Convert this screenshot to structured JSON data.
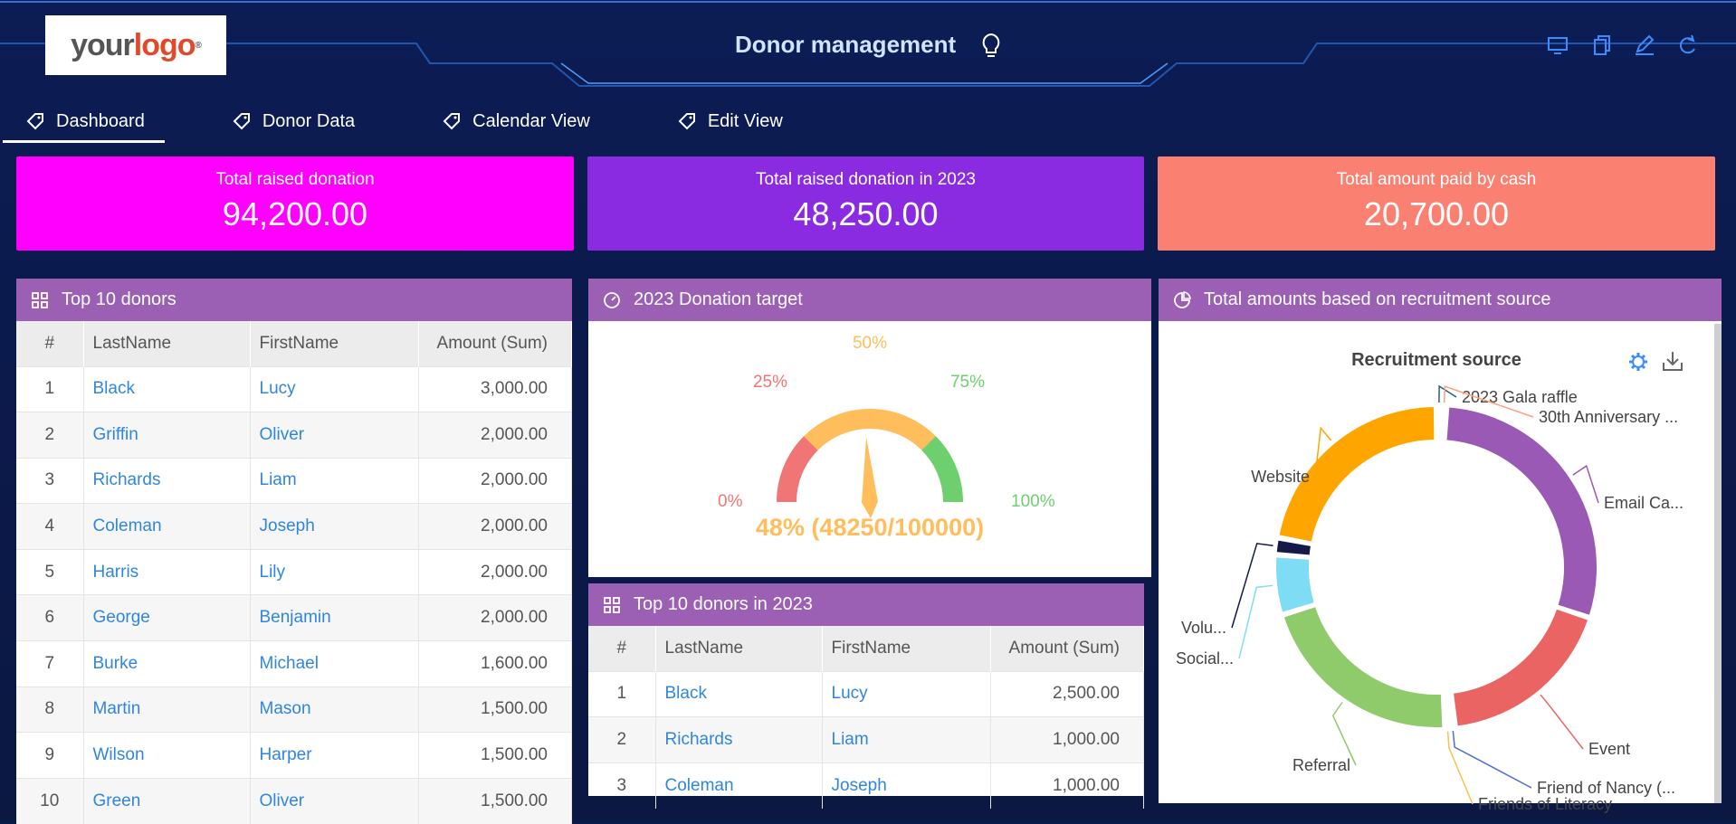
{
  "app": {
    "title": "Donor management",
    "logo_text": {
      "your": "your",
      "logo": "logo",
      "mark": "®"
    }
  },
  "header_icons": [
    "monitor-icon",
    "copy-icon",
    "edit-icon",
    "refresh-icon"
  ],
  "tabs": [
    {
      "label": "Dashboard",
      "active": true
    },
    {
      "label": "Donor Data",
      "active": false
    },
    {
      "label": "Calendar View",
      "active": false
    },
    {
      "label": "Edit View",
      "active": false
    }
  ],
  "kpis": [
    {
      "label": "Total raised donation",
      "value": "94,200.00",
      "color": "#ff00ff"
    },
    {
      "label": "Total raised donation in 2023",
      "value": "48,250.00",
      "color": "#8a2be2"
    },
    {
      "label": "Total amount paid by cash",
      "value": "20,700.00",
      "color": "#fa8072"
    }
  ],
  "top_donors": {
    "title": "Top 10 donors",
    "columns": [
      "#",
      "LastName",
      "FirstName",
      "Amount (Sum)"
    ],
    "rows": [
      [
        "1",
        "Black",
        "Lucy",
        "3,000.00"
      ],
      [
        "2",
        "Griffin",
        "Oliver",
        "2,000.00"
      ],
      [
        "3",
        "Richards",
        "Liam",
        "2,000.00"
      ],
      [
        "4",
        "Coleman",
        "Joseph",
        "2,000.00"
      ],
      [
        "5",
        "Harris",
        "Lily",
        "2,000.00"
      ],
      [
        "6",
        "George",
        "Benjamin",
        "2,000.00"
      ],
      [
        "7",
        "Burke",
        "Michael",
        "1,600.00"
      ],
      [
        "8",
        "Martin",
        "Mason",
        "1,500.00"
      ],
      [
        "9",
        "Wilson",
        "Harper",
        "1,500.00"
      ],
      [
        "10",
        "Green",
        "Oliver",
        "1,500.00"
      ]
    ]
  },
  "gauge": {
    "title": "2023 Donation target",
    "ticks": [
      "0%",
      "25%",
      "50%",
      "75%",
      "100%"
    ],
    "value_fraction": 0.4825,
    "value_label": "48% (48250/100000)",
    "colors": {
      "low": "#f07575",
      "mid": "#ffbd5c",
      "high": "#6dcf6d"
    }
  },
  "top_donors_2023": {
    "title": "Top 10 donors in 2023",
    "columns": [
      "#",
      "LastName",
      "FirstName",
      "Amount (Sum)"
    ],
    "rows": [
      [
        "1",
        "Black",
        "Lucy",
        "2,500.00"
      ],
      [
        "2",
        "Richards",
        "Liam",
        "1,000.00"
      ],
      [
        "3",
        "Coleman",
        "Joseph",
        "1,000.00"
      ]
    ]
  },
  "recruitment": {
    "panel_title": "Total amounts based on recruitment source",
    "chart_title": "Recruitment source",
    "icons": [
      "settings-icon",
      "download-icon"
    ]
  },
  "chart_data": {
    "type": "pie",
    "title": "Recruitment source",
    "donut": true,
    "slices": [
      {
        "label": "2023 Gala raffle",
        "value": 0.5,
        "color": "#1f5f8f"
      },
      {
        "label": "30th Anniversary ...",
        "value": 0.5,
        "color": "#ffa07a"
      },
      {
        "label": "Email Ca...",
        "value": 29,
        "color": "#9b59b6"
      },
      {
        "label": "Event",
        "value": 18,
        "color": "#ea6464"
      },
      {
        "label": "Friend of Nancy (...",
        "value": 0.5,
        "color": "#4a6fd6"
      },
      {
        "label": "Friends of Literacy",
        "value": 0.5,
        "color": "#ffc04d"
      },
      {
        "label": "Referral",
        "value": 21,
        "color": "#8fcb6b"
      },
      {
        "label": "Social...",
        "value": 6,
        "color": "#7fdcf5"
      },
      {
        "label": "Volu...",
        "value": 1.7,
        "color": "#14194a"
      },
      {
        "label": "Website",
        "value": 22,
        "color": "#ffa500"
      }
    ]
  }
}
